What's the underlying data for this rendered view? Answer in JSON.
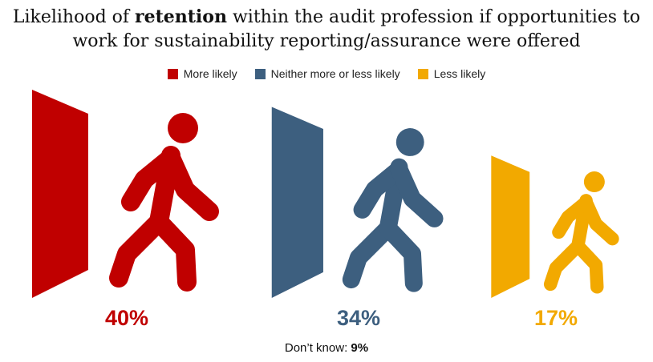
{
  "title": {
    "prefix": "Likelihood of ",
    "bold": "retention",
    "suffix": " within the audit profession if opportunities to work for sustainability reporting/assurance were offered"
  },
  "chart_data": {
    "type": "bar",
    "categories": [
      "More likely",
      "Neither more or less likely",
      "Less likely"
    ],
    "values": [
      40,
      34,
      17
    ],
    "value_labels": [
      "40%",
      "34%",
      "17%"
    ],
    "colors": [
      "#c00000",
      "#3d5f7f",
      "#f2a900"
    ],
    "legend_position": "top-center"
  },
  "footnote": {
    "label": "Don’t know: ",
    "value": "9%"
  }
}
